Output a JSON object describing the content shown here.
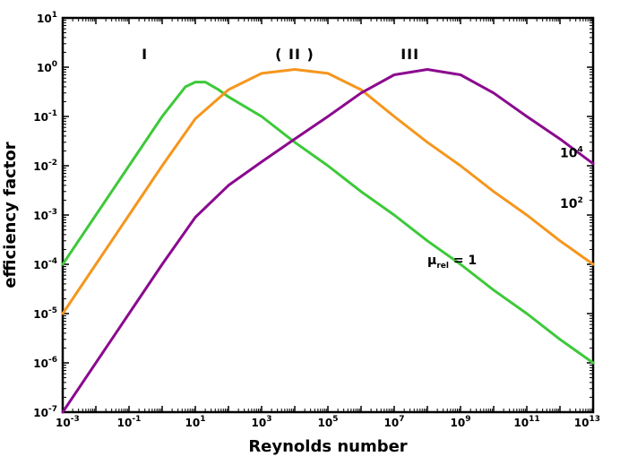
{
  "chart_data": {
    "type": "line",
    "title": "",
    "xlabel": "Reynolds number",
    "ylabel": "efficiency factor",
    "xscale": "log",
    "yscale": "log",
    "xlim": [
      0.001,
      10000000000000
    ],
    "ylim": [
      1e-07,
      10
    ],
    "grid": false,
    "x_ticks": [
      {
        "base": "10",
        "exp": "-3",
        "value": 0.001
      },
      {
        "base": "10",
        "exp": "-1",
        "value": 0.1
      },
      {
        "base": "10",
        "exp": "1",
        "value": 10
      },
      {
        "base": "10",
        "exp": "3",
        "value": 1000
      },
      {
        "base": "10",
        "exp": "5",
        "value": 100000
      },
      {
        "base": "10",
        "exp": "7",
        "value": 10000000
      },
      {
        "base": "10",
        "exp": "9",
        "value": 1000000000
      },
      {
        "base": "10",
        "exp": "11",
        "value": 100000000000
      },
      {
        "base": "10",
        "exp": "13",
        "value": 10000000000000
      }
    ],
    "y_ticks": [
      {
        "base": "10",
        "exp": "-7",
        "value": 1e-07
      },
      {
        "base": "10",
        "exp": "-6",
        "value": 1e-06
      },
      {
        "base": "10",
        "exp": "-5",
        "value": 1e-05
      },
      {
        "base": "10",
        "exp": "-4",
        "value": 0.0001
      },
      {
        "base": "10",
        "exp": "-3",
        "value": 0.001
      },
      {
        "base": "10",
        "exp": "-2",
        "value": 0.01
      },
      {
        "base": "10",
        "exp": "-1",
        "value": 0.1
      },
      {
        "base": "10",
        "exp": "0",
        "value": 1
      },
      {
        "base": "10",
        "exp": "1",
        "value": 10
      }
    ],
    "series": [
      {
        "color": "#3ec93a",
        "x": [
          0.001,
          0.01,
          0.1,
          1,
          5,
          10,
          20,
          50,
          100,
          1000,
          10000,
          100000,
          1000000,
          10000000,
          100000000,
          1000000000,
          10000000000,
          100000000000,
          1000000000000,
          10000000000000
        ],
        "y": [
          0.0001,
          0.001,
          0.01,
          0.1,
          0.4,
          0.5,
          0.5,
          0.35,
          0.25,
          0.1,
          0.03,
          0.01,
          0.003,
          0.001,
          0.0003,
          0.0001,
          3e-05,
          1e-05,
          3e-06,
          1e-06
        ]
      },
      {
        "color": "#f5961d",
        "x": [
          0.001,
          0.01,
          0.1,
          1,
          10,
          100,
          1000,
          10000,
          100000,
          1000000,
          10000000,
          100000000,
          1000000000,
          10000000000,
          100000000000,
          1000000000000,
          10000000000000
        ],
        "y": [
          1e-05,
          0.0001,
          0.001,
          0.01,
          0.09,
          0.35,
          0.75,
          0.9,
          0.75,
          0.35,
          0.1,
          0.03,
          0.01,
          0.003,
          0.001,
          0.0003,
          0.0001
        ]
      },
      {
        "color": "#8b0a8f",
        "x": [
          0.001,
          0.01,
          0.1,
          1,
          10,
          100,
          1000,
          10000,
          100000,
          1000000,
          10000000,
          100000000,
          1000000000,
          10000000000,
          100000000000,
          1000000000000,
          10000000000000
        ],
        "y": [
          1e-07,
          1e-06,
          1e-05,
          0.0001,
          0.0009,
          0.004,
          0.012,
          0.035,
          0.1,
          0.3,
          0.7,
          0.9,
          0.7,
          0.3,
          0.1,
          0.035,
          0.011
        ]
      }
    ],
    "annotations": [
      {
        "id": "green",
        "text": "= 1",
        "symbol": "μ",
        "sub": "rel",
        "x": 100000000,
        "y": 0.0001
      },
      {
        "id": "orange",
        "base": "10",
        "exp": "2",
        "x": 1000000000000,
        "y": 0.0014
      },
      {
        "id": "purple",
        "base": "10",
        "exp": "4",
        "x": 1000000000000,
        "y": 0.015
      }
    ],
    "regions": [
      {
        "label": "I",
        "x": 0.3
      },
      {
        "label": "( II )",
        "x": 10000
      },
      {
        "label": "III",
        "x": 30000000
      }
    ]
  }
}
